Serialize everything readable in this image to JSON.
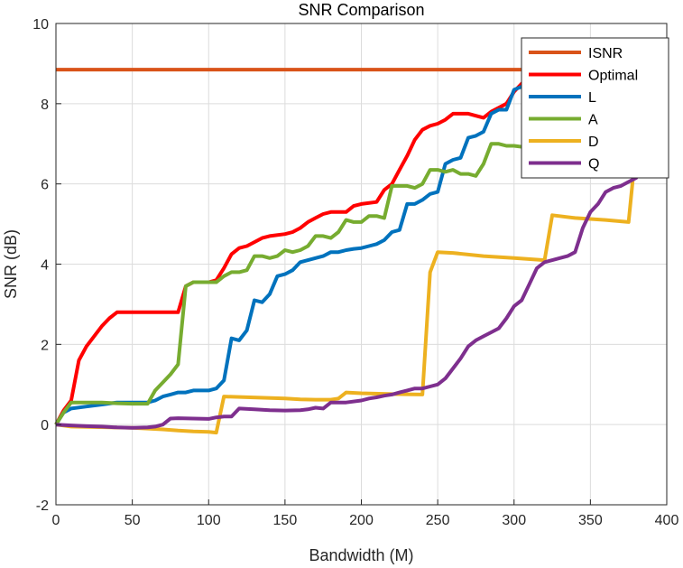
{
  "chart_data": {
    "type": "line",
    "title": "SNR Comparison",
    "xlabel": "Bandwidth (M)",
    "ylabel": "SNR (dB)",
    "xlim": [
      0,
      400
    ],
    "ylim": [
      -2,
      10
    ],
    "xticks": [
      0,
      50,
      100,
      150,
      200,
      250,
      300,
      350,
      400
    ],
    "yticks": [
      -2,
      0,
      2,
      4,
      6,
      8,
      10
    ],
    "grid": true,
    "legend_position": "top-right",
    "series": [
      {
        "name": "ISNR",
        "color": "#D95319",
        "points": [
          [
            0,
            8.85
          ],
          [
            400,
            8.85
          ]
        ]
      },
      {
        "name": "Optimal",
        "color": "#FF0000",
        "points": [
          [
            0,
            0
          ],
          [
            5,
            0.35
          ],
          [
            10,
            0.6
          ],
          [
            15,
            1.6
          ],
          [
            20,
            1.95
          ],
          [
            25,
            2.2
          ],
          [
            30,
            2.45
          ],
          [
            35,
            2.65
          ],
          [
            40,
            2.8
          ],
          [
            50,
            2.8
          ],
          [
            60,
            2.8
          ],
          [
            70,
            2.8
          ],
          [
            80,
            2.8
          ],
          [
            85,
            3.45
          ],
          [
            90,
            3.55
          ],
          [
            100,
            3.55
          ],
          [
            105,
            3.6
          ],
          [
            110,
            3.9
          ],
          [
            115,
            4.25
          ],
          [
            120,
            4.4
          ],
          [
            125,
            4.45
          ],
          [
            130,
            4.55
          ],
          [
            135,
            4.65
          ],
          [
            140,
            4.7
          ],
          [
            150,
            4.75
          ],
          [
            155,
            4.8
          ],
          [
            160,
            4.9
          ],
          [
            165,
            5.05
          ],
          [
            170,
            5.15
          ],
          [
            175,
            5.25
          ],
          [
            180,
            5.3
          ],
          [
            190,
            5.3
          ],
          [
            195,
            5.45
          ],
          [
            200,
            5.5
          ],
          [
            210,
            5.55
          ],
          [
            215,
            5.85
          ],
          [
            220,
            6.0
          ],
          [
            225,
            6.35
          ],
          [
            230,
            6.7
          ],
          [
            235,
            7.1
          ],
          [
            240,
            7.35
          ],
          [
            245,
            7.45
          ],
          [
            250,
            7.5
          ],
          [
            255,
            7.6
          ],
          [
            260,
            7.75
          ],
          [
            270,
            7.75
          ],
          [
            275,
            7.7
          ],
          [
            280,
            7.65
          ],
          [
            285,
            7.8
          ],
          [
            290,
            7.9
          ],
          [
            295,
            8.0
          ],
          [
            300,
            8.3
          ],
          [
            305,
            8.5
          ],
          [
            315,
            8.8
          ],
          [
            325,
            8.75
          ],
          [
            340,
            8.8
          ],
          [
            360,
            8.85
          ],
          [
            380,
            9.0
          ],
          [
            390,
            9.1
          ],
          [
            400,
            8.85
          ]
        ]
      },
      {
        "name": "L",
        "color": "#0072BD",
        "points": [
          [
            0,
            0
          ],
          [
            5,
            0.3
          ],
          [
            10,
            0.4
          ],
          [
            20,
            0.45
          ],
          [
            30,
            0.5
          ],
          [
            40,
            0.55
          ],
          [
            50,
            0.55
          ],
          [
            60,
            0.55
          ],
          [
            65,
            0.6
          ],
          [
            70,
            0.7
          ],
          [
            75,
            0.75
          ],
          [
            80,
            0.8
          ],
          [
            85,
            0.8
          ],
          [
            90,
            0.85
          ],
          [
            100,
            0.85
          ],
          [
            105,
            0.9
          ],
          [
            110,
            1.1
          ],
          [
            115,
            2.15
          ],
          [
            120,
            2.1
          ],
          [
            125,
            2.35
          ],
          [
            130,
            3.1
          ],
          [
            135,
            3.05
          ],
          [
            140,
            3.25
          ],
          [
            145,
            3.7
          ],
          [
            150,
            3.75
          ],
          [
            155,
            3.85
          ],
          [
            160,
            4.05
          ],
          [
            165,
            4.1
          ],
          [
            170,
            4.15
          ],
          [
            175,
            4.2
          ],
          [
            180,
            4.3
          ],
          [
            185,
            4.3
          ],
          [
            190,
            4.35
          ],
          [
            195,
            4.38
          ],
          [
            200,
            4.4
          ],
          [
            205,
            4.45
          ],
          [
            210,
            4.5
          ],
          [
            215,
            4.6
          ],
          [
            220,
            4.8
          ],
          [
            225,
            4.85
          ],
          [
            230,
            5.5
          ],
          [
            235,
            5.5
          ],
          [
            240,
            5.6
          ],
          [
            245,
            5.75
          ],
          [
            250,
            5.8
          ],
          [
            255,
            6.5
          ],
          [
            260,
            6.6
          ],
          [
            265,
            6.65
          ],
          [
            270,
            7.15
          ],
          [
            275,
            7.2
          ],
          [
            280,
            7.3
          ],
          [
            285,
            7.75
          ],
          [
            290,
            7.85
          ],
          [
            295,
            7.85
          ],
          [
            300,
            8.35
          ],
          [
            310,
            8.5
          ],
          [
            320,
            8.5
          ],
          [
            330,
            8.6
          ],
          [
            340,
            8.7
          ],
          [
            360,
            8.75
          ],
          [
            380,
            8.8
          ],
          [
            400,
            8.85
          ]
        ]
      },
      {
        "name": "A",
        "color": "#77AC30",
        "points": [
          [
            0,
            0
          ],
          [
            5,
            0.3
          ],
          [
            10,
            0.55
          ],
          [
            20,
            0.55
          ],
          [
            30,
            0.55
          ],
          [
            40,
            0.53
          ],
          [
            50,
            0.52
          ],
          [
            60,
            0.52
          ],
          [
            65,
            0.85
          ],
          [
            70,
            1.05
          ],
          [
            75,
            1.25
          ],
          [
            80,
            1.5
          ],
          [
            85,
            3.45
          ],
          [
            90,
            3.55
          ],
          [
            100,
            3.55
          ],
          [
            105,
            3.55
          ],
          [
            110,
            3.7
          ],
          [
            115,
            3.8
          ],
          [
            120,
            3.8
          ],
          [
            125,
            3.85
          ],
          [
            130,
            4.2
          ],
          [
            135,
            4.2
          ],
          [
            140,
            4.15
          ],
          [
            145,
            4.2
          ],
          [
            150,
            4.35
          ],
          [
            155,
            4.3
          ],
          [
            160,
            4.35
          ],
          [
            165,
            4.45
          ],
          [
            170,
            4.7
          ],
          [
            175,
            4.7
          ],
          [
            180,
            4.65
          ],
          [
            185,
            4.8
          ],
          [
            190,
            5.1
          ],
          [
            195,
            5.05
          ],
          [
            200,
            5.05
          ],
          [
            205,
            5.2
          ],
          [
            210,
            5.2
          ],
          [
            215,
            5.15
          ],
          [
            220,
            5.95
          ],
          [
            225,
            5.95
          ],
          [
            230,
            5.95
          ],
          [
            235,
            5.9
          ],
          [
            240,
            6.0
          ],
          [
            245,
            6.35
          ],
          [
            250,
            6.35
          ],
          [
            255,
            6.3
          ],
          [
            260,
            6.35
          ],
          [
            265,
            6.25
          ],
          [
            270,
            6.25
          ],
          [
            275,
            6.2
          ],
          [
            280,
            6.5
          ],
          [
            285,
            7.0
          ],
          [
            290,
            7.0
          ],
          [
            295,
            6.95
          ],
          [
            300,
            6.95
          ],
          [
            310,
            6.9
          ],
          [
            320,
            6.95
          ],
          [
            330,
            7.0
          ],
          [
            340,
            7.1
          ],
          [
            350,
            7.3
          ],
          [
            360,
            7.6
          ],
          [
            370,
            7.85
          ],
          [
            380,
            7.85
          ],
          [
            390,
            7.85
          ],
          [
            400,
            8.85
          ]
        ]
      },
      {
        "name": "D",
        "color": "#EDB120",
        "points": [
          [
            0,
            0
          ],
          [
            10,
            -0.05
          ],
          [
            50,
            -0.08
          ],
          [
            60,
            -0.1
          ],
          [
            70,
            -0.12
          ],
          [
            80,
            -0.15
          ],
          [
            90,
            -0.17
          ],
          [
            100,
            -0.18
          ],
          [
            105,
            -0.2
          ],
          [
            110,
            0.7
          ],
          [
            150,
            0.65
          ],
          [
            160,
            0.63
          ],
          [
            170,
            0.62
          ],
          [
            180,
            0.62
          ],
          [
            185,
            0.65
          ],
          [
            190,
            0.8
          ],
          [
            200,
            0.78
          ],
          [
            220,
            0.76
          ],
          [
            240,
            0.75
          ],
          [
            245,
            3.8
          ],
          [
            250,
            4.3
          ],
          [
            260,
            4.28
          ],
          [
            280,
            4.2
          ],
          [
            300,
            4.15
          ],
          [
            320,
            4.1
          ],
          [
            325,
            5.22
          ],
          [
            340,
            5.15
          ],
          [
            360,
            5.1
          ],
          [
            375,
            5.05
          ],
          [
            380,
            6.95
          ],
          [
            385,
            7.45
          ],
          [
            390,
            7.5
          ],
          [
            400,
            8.85
          ]
        ]
      },
      {
        "name": "Q",
        "color": "#7E2F8E",
        "points": [
          [
            0,
            0
          ],
          [
            10,
            -0.02
          ],
          [
            20,
            -0.04
          ],
          [
            30,
            -0.05
          ],
          [
            40,
            -0.07
          ],
          [
            50,
            -0.08
          ],
          [
            60,
            -0.07
          ],
          [
            65,
            -0.05
          ],
          [
            70,
            0.0
          ],
          [
            75,
            0.15
          ],
          [
            80,
            0.16
          ],
          [
            90,
            0.15
          ],
          [
            100,
            0.14
          ],
          [
            105,
            0.18
          ],
          [
            110,
            0.2
          ],
          [
            115,
            0.2
          ],
          [
            120,
            0.4
          ],
          [
            130,
            0.38
          ],
          [
            140,
            0.36
          ],
          [
            150,
            0.35
          ],
          [
            160,
            0.36
          ],
          [
            165,
            0.38
          ],
          [
            170,
            0.42
          ],
          [
            175,
            0.4
          ],
          [
            180,
            0.55
          ],
          [
            190,
            0.55
          ],
          [
            200,
            0.6
          ],
          [
            205,
            0.65
          ],
          [
            210,
            0.68
          ],
          [
            215,
            0.72
          ],
          [
            220,
            0.75
          ],
          [
            225,
            0.8
          ],
          [
            230,
            0.85
          ],
          [
            235,
            0.9
          ],
          [
            240,
            0.9
          ],
          [
            245,
            0.95
          ],
          [
            250,
            1.0
          ],
          [
            255,
            1.15
          ],
          [
            260,
            1.4
          ],
          [
            265,
            1.65
          ],
          [
            270,
            1.95
          ],
          [
            275,
            2.1
          ],
          [
            280,
            2.2
          ],
          [
            285,
            2.3
          ],
          [
            290,
            2.4
          ],
          [
            295,
            2.65
          ],
          [
            300,
            2.95
          ],
          [
            305,
            3.1
          ],
          [
            310,
            3.5
          ],
          [
            315,
            3.9
          ],
          [
            320,
            4.05
          ],
          [
            325,
            4.1
          ],
          [
            330,
            4.15
          ],
          [
            335,
            4.2
          ],
          [
            340,
            4.3
          ],
          [
            345,
            4.9
          ],
          [
            350,
            5.3
          ],
          [
            355,
            5.5
          ],
          [
            360,
            5.8
          ],
          [
            365,
            5.9
          ],
          [
            370,
            5.95
          ],
          [
            375,
            6.05
          ],
          [
            380,
            6.15
          ],
          [
            385,
            6.5
          ],
          [
            390,
            6.9
          ],
          [
            395,
            7.15
          ],
          [
            400,
            8.85
          ]
        ]
      }
    ]
  }
}
